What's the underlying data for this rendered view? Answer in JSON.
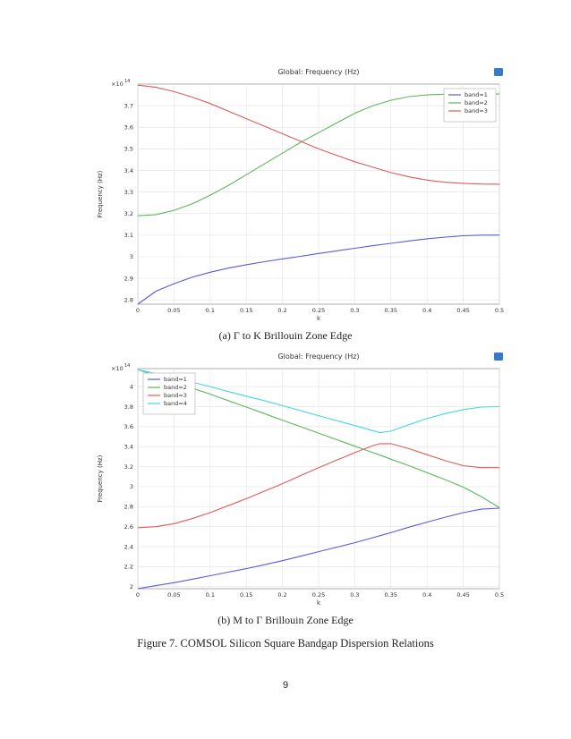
{
  "chart_data": [
    {
      "type": "line",
      "title": "Global: Frequency (Hz)",
      "xlabel": "k",
      "ylabel": "Frequency (Hz)",
      "y_multiplier": "×10",
      "y_exponent": "14",
      "xlim": [
        0,
        0.5
      ],
      "ylim": [
        2.78,
        3.8
      ],
      "xticks": [
        0,
        0.05,
        0.1,
        0.15,
        0.2,
        0.25,
        0.3,
        0.35,
        0.4,
        0.45,
        0.5
      ],
      "xtick_labels": [
        "0",
        "0.05",
        "0.1",
        "0.15",
        "0.2",
        "0.25",
        "0.3",
        "0.35",
        "0.4",
        "0.45",
        "0.5"
      ],
      "yticks": [
        2.8,
        2.9,
        3.0,
        3.1,
        3.2,
        3.3,
        3.4,
        3.5,
        3.6,
        3.7
      ],
      "ytick_labels": [
        "2.8",
        "2.9",
        "3",
        "3.1",
        "3.2",
        "3.3",
        "3.4",
        "3.5",
        "3.6",
        "3.7"
      ],
      "grid": true,
      "legend_position": "top-right",
      "x": [
        0,
        0.025,
        0.05,
        0.075,
        0.1,
        0.125,
        0.15,
        0.175,
        0.2,
        0.225,
        0.25,
        0.275,
        0.3,
        0.325,
        0.35,
        0.375,
        0.4,
        0.425,
        0.45,
        0.475,
        0.5
      ],
      "series": [
        {
          "name": "band=1",
          "color": "#5a5ad8",
          "values": [
            2.78,
            2.84,
            2.875,
            2.905,
            2.928,
            2.947,
            2.963,
            2.977,
            2.99,
            3.002,
            3.015,
            3.027,
            3.039,
            3.051,
            3.062,
            3.073,
            3.083,
            3.091,
            3.097,
            3.1,
            3.1
          ]
        },
        {
          "name": "band=2",
          "color": "#5bb85b",
          "values": [
            3.19,
            3.195,
            3.215,
            3.245,
            3.285,
            3.33,
            3.38,
            3.43,
            3.48,
            3.53,
            3.575,
            3.62,
            3.665,
            3.7,
            3.725,
            3.742,
            3.75,
            3.753,
            3.754,
            3.754,
            3.754
          ]
        },
        {
          "name": "band=3",
          "color": "#e05a5a",
          "values": [
            3.795,
            3.785,
            3.765,
            3.74,
            3.71,
            3.675,
            3.64,
            3.605,
            3.57,
            3.535,
            3.5,
            3.47,
            3.44,
            3.415,
            3.39,
            3.37,
            3.355,
            3.345,
            3.34,
            3.337,
            3.336
          ]
        }
      ]
    },
    {
      "type": "line",
      "title": "Global: Frequency (Hz)",
      "xlabel": "k",
      "ylabel": "Frequency (Hz)",
      "y_multiplier": "×10",
      "y_exponent": "14",
      "xlim": [
        0,
        0.5
      ],
      "ylim": [
        1.98,
        4.18
      ],
      "xticks": [
        0,
        0.05,
        0.1,
        0.15,
        0.2,
        0.25,
        0.3,
        0.35,
        0.4,
        0.45,
        0.5
      ],
      "xtick_labels": [
        "0",
        "0.05",
        "0.1",
        "0.15",
        "0.2",
        "0.25",
        "0.3",
        "0.35",
        "0.4",
        "0.45",
        "0.5"
      ],
      "yticks": [
        2.0,
        2.2,
        2.4,
        2.6,
        2.8,
        3.0,
        3.2,
        3.4,
        3.6,
        3.8,
        4.0
      ],
      "ytick_labels": [
        "2",
        "2.2",
        "2.4",
        "2.6",
        "2.8",
        "3",
        "3.2",
        "3.4",
        "3.6",
        "3.8",
        "4"
      ],
      "grid": true,
      "legend_position": "top-left",
      "x": [
        0,
        0.025,
        0.05,
        0.075,
        0.1,
        0.125,
        0.15,
        0.175,
        0.2,
        0.225,
        0.25,
        0.275,
        0.3,
        0.325,
        0.335,
        0.35,
        0.375,
        0.4,
        0.425,
        0.45,
        0.475,
        0.5
      ],
      "series": [
        {
          "name": "band=1",
          "color": "#5a5ad8",
          "values": [
            1.98,
            2.01,
            2.04,
            2.075,
            2.11,
            2.145,
            2.18,
            2.22,
            2.26,
            2.305,
            2.35,
            2.395,
            2.44,
            2.49,
            2.51,
            2.54,
            2.595,
            2.645,
            2.695,
            2.74,
            2.775,
            2.785
          ]
        },
        {
          "name": "band=2",
          "color": "#5bb85b",
          "values": [
            4.17,
            4.11,
            4.05,
            3.985,
            3.925,
            3.86,
            3.795,
            3.73,
            3.665,
            3.6,
            3.535,
            3.47,
            3.405,
            3.34,
            3.315,
            3.275,
            3.21,
            3.14,
            3.07,
            2.995,
            2.9,
            2.79
          ]
        },
        {
          "name": "band=3",
          "color": "#e05a5a",
          "values": [
            2.59,
            2.6,
            2.63,
            2.68,
            2.74,
            2.81,
            2.88,
            2.955,
            3.03,
            3.11,
            3.19,
            3.265,
            3.34,
            3.41,
            3.43,
            3.43,
            3.38,
            3.32,
            3.26,
            3.21,
            3.19,
            3.19
          ]
        },
        {
          "name": "band=4",
          "color": "#40d8e0",
          "values": [
            4.17,
            4.13,
            4.09,
            4.045,
            4.0,
            3.95,
            3.905,
            3.86,
            3.81,
            3.76,
            3.71,
            3.66,
            3.61,
            3.56,
            3.54,
            3.555,
            3.62,
            3.68,
            3.73,
            3.77,
            3.795,
            3.8
          ]
        }
      ]
    }
  ],
  "captions": {
    "a": "(a) Γ to K Brillouin Zone Edge",
    "b": "(b) M to Γ Brillouin Zone Edge",
    "figure": "Figure 7. COMSOL Silicon Square Bandgap Dispersion Relations"
  },
  "page_number": "9"
}
